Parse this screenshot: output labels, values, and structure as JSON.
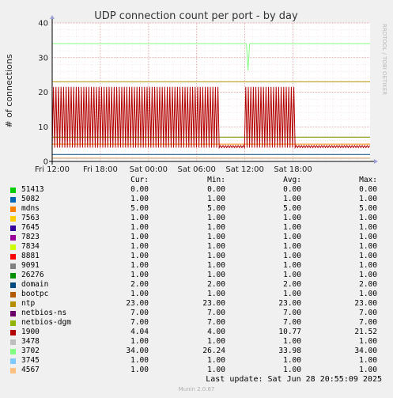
{
  "chart_data": {
    "type": "line",
    "title": "UDP connection count per port - by day",
    "ylabel": "# of connections",
    "xlabel": "",
    "ylim": [
      0,
      40
    ],
    "yticks": [
      0,
      10,
      20,
      30,
      40
    ],
    "xticks": [
      "Fri 12:00",
      "Fri 18:00",
      "Sat 00:00",
      "Sat 06:00",
      "Sat 12:00",
      "Sat 18:00"
    ],
    "watermark": "RRDTOOL / TOBI OETIKER",
    "legend_headers": {
      "cur": "Cur:",
      "min": "Min:",
      "avg": "Avg:",
      "max": "Max:"
    },
    "series": [
      {
        "name": "51413",
        "color": "#00cc00",
        "cur": "0.00",
        "min": "0.00",
        "avg": "0.00",
        "max": "0.00"
      },
      {
        "name": "5082",
        "color": "#0066b3",
        "cur": "1.00",
        "min": "1.00",
        "avg": "1.00",
        "max": "1.00"
      },
      {
        "name": "mdns",
        "color": "#ff8000",
        "cur": "5.00",
        "min": "5.00",
        "avg": "5.00",
        "max": "5.00"
      },
      {
        "name": "7563",
        "color": "#ffcc00",
        "cur": "1.00",
        "min": "1.00",
        "avg": "1.00",
        "max": "1.00"
      },
      {
        "name": "7645",
        "color": "#330099",
        "cur": "1.00",
        "min": "1.00",
        "avg": "1.00",
        "max": "1.00"
      },
      {
        "name": "7823",
        "color": "#990099",
        "cur": "1.00",
        "min": "1.00",
        "avg": "1.00",
        "max": "1.00"
      },
      {
        "name": "7834",
        "color": "#ccff00",
        "cur": "1.00",
        "min": "1.00",
        "avg": "1.00",
        "max": "1.00"
      },
      {
        "name": "8881",
        "color": "#ff0000",
        "cur": "1.00",
        "min": "1.00",
        "avg": "1.00",
        "max": "1.00"
      },
      {
        "name": "9091",
        "color": "#808080",
        "cur": "1.00",
        "min": "1.00",
        "avg": "1.00",
        "max": "1.00"
      },
      {
        "name": "26276",
        "color": "#008f00",
        "cur": "1.00",
        "min": "1.00",
        "avg": "1.00",
        "max": "1.00"
      },
      {
        "name": "domain",
        "color": "#00487d",
        "cur": "2.00",
        "min": "2.00",
        "avg": "2.00",
        "max": "2.00"
      },
      {
        "name": "bootpc",
        "color": "#b35a00",
        "cur": "1.00",
        "min": "1.00",
        "avg": "1.00",
        "max": "1.00"
      },
      {
        "name": "ntp",
        "color": "#b38f00",
        "cur": "23.00",
        "min": "23.00",
        "avg": "23.00",
        "max": "23.00"
      },
      {
        "name": "netbios-ns",
        "color": "#6b006b",
        "cur": "7.00",
        "min": "7.00",
        "avg": "7.00",
        "max": "7.00"
      },
      {
        "name": "netbios-dgm",
        "color": "#8fb300",
        "cur": "7.00",
        "min": "7.00",
        "avg": "7.00",
        "max": "7.00"
      },
      {
        "name": "1900",
        "color": "#b30000",
        "cur": "4.04",
        "min": "4.00",
        "avg": "10.77",
        "max": "21.52"
      },
      {
        "name": "3478",
        "color": "#bebebe",
        "cur": "1.00",
        "min": "1.00",
        "avg": "1.00",
        "max": "1.00"
      },
      {
        "name": "3702",
        "color": "#80ff80",
        "cur": "34.00",
        "min": "26.24",
        "avg": "33.98",
        "max": "34.00"
      },
      {
        "name": "3745",
        "color": "#80c9ff",
        "cur": "1.00",
        "min": "1.00",
        "avg": "1.00",
        "max": "1.00"
      },
      {
        "name": "4567",
        "color": "#ffc080",
        "cur": "1.00",
        "min": "1.00",
        "avg": "1.00",
        "max": "1.00"
      }
    ]
  },
  "footer": {
    "last_update": "Last update: Sat Jun 28 20:55:09 2025",
    "munin": "Munin 2.0.67"
  }
}
